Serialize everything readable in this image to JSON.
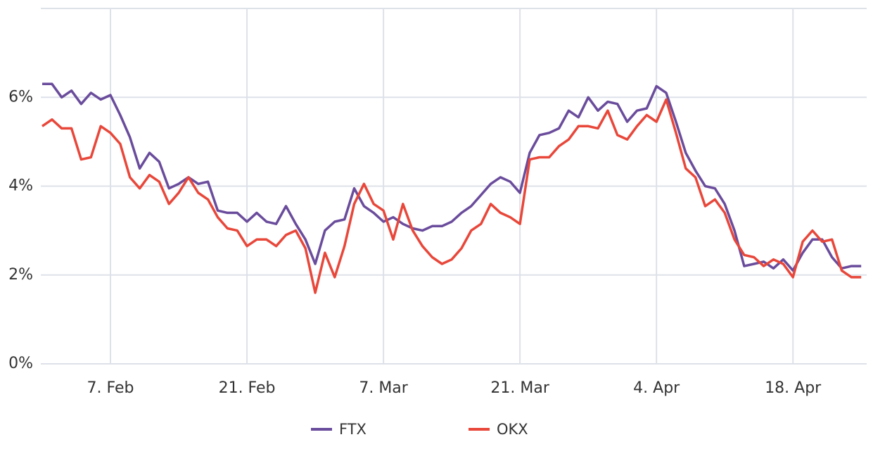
{
  "chart_data": {
    "type": "line",
    "categories": [
      null,
      null,
      null,
      null,
      null,
      null,
      null,
      "7. Feb",
      null,
      null,
      null,
      null,
      null,
      null,
      null,
      null,
      null,
      null,
      null,
      null,
      null,
      "21. Feb",
      null,
      null,
      null,
      null,
      null,
      null,
      null,
      null,
      null,
      null,
      null,
      null,
      null,
      "7. Mar",
      null,
      null,
      null,
      null,
      null,
      null,
      null,
      null,
      null,
      null,
      null,
      null,
      null,
      "21. Mar",
      null,
      null,
      null,
      null,
      null,
      null,
      null,
      null,
      null,
      null,
      null,
      null,
      null,
      "4. Apr",
      null,
      null,
      null,
      null,
      null,
      null,
      null,
      null,
      null,
      null,
      null,
      null,
      null,
      "18. Apr",
      null,
      null,
      null,
      null,
      null,
      null,
      null
    ],
    "series": [
      {
        "name": "FTX",
        "color": "#6a4c9c",
        "values": [
          6.3,
          6.3,
          6.0,
          6.15,
          5.85,
          6.1,
          5.95,
          6.05,
          5.6,
          5.1,
          4.4,
          4.75,
          4.55,
          3.95,
          4.05,
          4.2,
          4.05,
          4.1,
          3.45,
          3.4,
          3.4,
          3.2,
          3.4,
          3.2,
          3.15,
          3.55,
          3.15,
          2.8,
          2.25,
          3.0,
          3.2,
          3.25,
          3.95,
          3.55,
          3.4,
          3.2,
          3.3,
          3.15,
          3.05,
          3.0,
          3.1,
          3.1,
          3.2,
          3.4,
          3.55,
          3.8,
          4.05,
          4.2,
          4.1,
          3.85,
          4.75,
          5.15,
          5.2,
          5.3,
          5.7,
          5.55,
          6.0,
          5.7,
          5.9,
          5.85,
          5.45,
          5.7,
          5.75,
          6.25,
          6.1,
          5.45,
          4.75,
          4.35,
          4.0,
          3.95,
          3.6,
          3.0,
          2.2,
          2.25,
          2.3,
          2.15,
          2.35,
          2.1,
          2.5,
          2.8,
          2.8,
          2.4,
          2.15,
          2.2,
          2.2
        ]
      },
      {
        "name": "OKX",
        "color": "#e8473a",
        "values": [
          5.35,
          5.5,
          5.3,
          5.3,
          4.6,
          4.65,
          5.35,
          5.2,
          4.95,
          4.2,
          3.95,
          4.25,
          4.1,
          3.6,
          3.85,
          4.2,
          3.85,
          3.7,
          3.3,
          3.05,
          3.0,
          2.65,
          2.8,
          2.8,
          2.65,
          2.9,
          3.0,
          2.6,
          1.6,
          2.5,
          1.95,
          2.65,
          3.6,
          4.05,
          3.6,
          3.45,
          2.8,
          3.6,
          3.0,
          2.65,
          2.4,
          2.25,
          2.35,
          2.6,
          3.0,
          3.15,
          3.6,
          3.4,
          3.3,
          3.15,
          4.6,
          4.65,
          4.65,
          4.9,
          5.05,
          5.35,
          5.35,
          5.3,
          5.7,
          5.15,
          5.05,
          5.35,
          5.6,
          5.45,
          5.95,
          5.2,
          4.4,
          4.2,
          3.55,
          3.7,
          3.4,
          2.8,
          2.45,
          2.4,
          2.2,
          2.35,
          2.25,
          1.95,
          2.75,
          3.0,
          2.75,
          2.8,
          2.1,
          1.95,
          1.95
        ]
      }
    ],
    "ylim": [
      0,
      8
    ],
    "yticks": [
      {
        "value": 0,
        "label": "0%"
      },
      {
        "value": 2,
        "label": "2%"
      },
      {
        "value": 4,
        "label": "4%"
      },
      {
        "value": 6,
        "label": "6%"
      }
    ],
    "grid": true
  }
}
